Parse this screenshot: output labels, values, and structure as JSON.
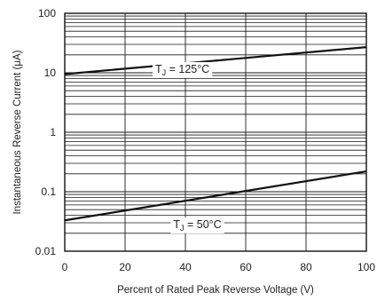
{
  "chart_data": {
    "type": "line",
    "xlabel": "Percent of Rated Peak Reverse Voltage (V)",
    "ylabel": "Instantaneous Reverse Current (μA)",
    "xlim": [
      0,
      100
    ],
    "ylim": [
      0.01,
      100
    ],
    "yscale": "log",
    "grid": true,
    "xticks": [
      "0",
      "20",
      "40",
      "60",
      "80",
      "100"
    ],
    "yticks": [
      "0.01",
      "0.1",
      "1",
      "10",
      "100"
    ],
    "series": [
      {
        "label": "TJ = 125°C",
        "label_main": "T",
        "label_sub": "J",
        "label_rest": " = 125°C",
        "x": [
          0,
          100
        ],
        "y": [
          9.5,
          27
        ],
        "label_x": 30,
        "label_y": 11.5
      },
      {
        "label": "TJ = 50°C",
        "label_main": "T",
        "label_sub": "J",
        "label_rest": " = 50°C",
        "x": [
          0,
          100
        ],
        "y": [
          0.033,
          0.22
        ],
        "label_x": 36,
        "label_y": 0.028
      }
    ],
    "colors": {
      "line": "#111111",
      "grid": "#1a1a1a",
      "frame": "#111111"
    }
  }
}
